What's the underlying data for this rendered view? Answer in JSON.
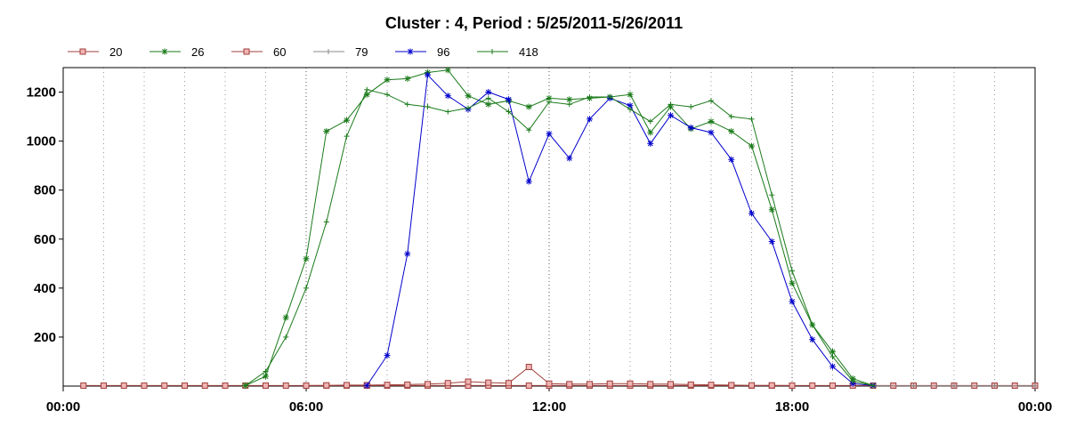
{
  "chart_data": {
    "type": "line",
    "title": "Cluster : 4, Period : 5/25/2011-5/26/2011",
    "xlabel": "",
    "ylabel": "",
    "x_tick_labels": [
      "00:00",
      "06:00",
      "12:00",
      "18:00",
      "00:00"
    ],
    "y_ticks": [
      200,
      400,
      600,
      800,
      1000,
      1200
    ],
    "xlim_hours": [
      0,
      24
    ],
    "ylim": [
      0,
      1300
    ],
    "grid": "vertical-dotted",
    "legend_placement": "top-left",
    "series": [
      {
        "name": "20",
        "color": "#a0403c",
        "marker": "square",
        "x": [
          0.5,
          1.0,
          1.5,
          2.0,
          2.5,
          3.0,
          3.5,
          4.0,
          4.5,
          5.0,
          5.5,
          6.0,
          6.5,
          7.0,
          7.5,
          8.0,
          8.5,
          9.0,
          9.5,
          10.0,
          10.5,
          11.0,
          11.5,
          12.0,
          12.5,
          13.0,
          13.5,
          14.0,
          14.5,
          15.0,
          15.5,
          16.0,
          16.5,
          17.0,
          17.5,
          18.0,
          18.5,
          19.0,
          19.5,
          20.0,
          20.5,
          21.0,
          21.5,
          22.0,
          22.5,
          23.0,
          23.5,
          24.0
        ],
        "values": [
          2,
          2,
          2,
          2,
          2,
          2,
          2,
          2,
          2,
          2,
          2,
          2,
          2,
          2,
          2,
          2,
          2,
          2,
          2,
          2,
          2,
          2,
          2,
          2,
          2,
          2,
          2,
          2,
          2,
          2,
          2,
          2,
          2,
          2,
          2,
          2,
          2,
          2,
          2,
          2,
          2,
          2,
          2,
          2,
          2,
          2,
          2,
          2
        ]
      },
      {
        "name": "26",
        "color": "#1a7a1a",
        "marker": "asterisk",
        "x": [
          4.5,
          5.0,
          5.5,
          6.0,
          6.5,
          7.0,
          7.5,
          8.0,
          8.5,
          9.0,
          9.5,
          10.0,
          10.5,
          11.0,
          11.5,
          12.0,
          12.5,
          13.0,
          13.5,
          14.0,
          14.5,
          15.0,
          15.5,
          16.0,
          16.5,
          17.0,
          17.5,
          18.0,
          18.5,
          19.0,
          19.5,
          20.0
        ],
        "values": [
          2,
          40,
          280,
          520,
          1040,
          1085,
          1190,
          1250,
          1255,
          1280,
          1290,
          1185,
          1150,
          1165,
          1140,
          1175,
          1170,
          1175,
          1180,
          1190,
          1035,
          1140,
          1050,
          1080,
          1040,
          980,
          720,
          420,
          250,
          140,
          30,
          2
        ]
      },
      {
        "name": "60",
        "color": "#a0403c",
        "marker": "square",
        "x": [
          6.0,
          6.5,
          7.0,
          7.5,
          8.0,
          8.5,
          9.0,
          9.5,
          10.0,
          10.5,
          11.0,
          11.5,
          12.0,
          12.5,
          13.0,
          13.5,
          14.0,
          14.5,
          15.0,
          15.5,
          16.0,
          16.5,
          17.0,
          17.5,
          18.0
        ],
        "values": [
          2,
          3,
          4,
          4,
          5,
          6,
          8,
          12,
          18,
          14,
          12,
          78,
          10,
          8,
          8,
          10,
          10,
          8,
          8,
          6,
          5,
          4,
          3,
          3,
          2
        ]
      },
      {
        "name": "79",
        "color": "#888888",
        "marker": "plus",
        "x": [
          20.0,
          21.0,
          22.0,
          23.0,
          24.0
        ],
        "values": [
          1,
          1,
          1,
          1,
          1
        ]
      },
      {
        "name": "96",
        "color": "#0000cc",
        "marker": "asterisk",
        "x": [
          7.5,
          8.0,
          8.5,
          9.0,
          9.5,
          10.0,
          10.5,
          11.0,
          11.5,
          12.0,
          12.5,
          13.0,
          13.5,
          14.0,
          14.5,
          15.0,
          15.5,
          16.0,
          16.5,
          17.0,
          17.5,
          18.0,
          18.5,
          19.0,
          19.5,
          20.0
        ],
        "values": [
          2,
          125,
          540,
          1270,
          1185,
          1130,
          1200,
          1170,
          835,
          1030,
          930,
          1090,
          1175,
          1145,
          990,
          1105,
          1055,
          1035,
          925,
          705,
          590,
          345,
          190,
          80,
          10,
          2
        ]
      },
      {
        "name": "418",
        "color": "#1a7a1a",
        "marker": "plus",
        "x": [
          4.5,
          5.0,
          5.5,
          6.0,
          6.5,
          7.0,
          7.5,
          8.0,
          8.5,
          9.0,
          9.5,
          10.0,
          10.5,
          11.0,
          11.5,
          12.0,
          12.5,
          13.0,
          13.5,
          14.0,
          14.5,
          15.0,
          15.5,
          16.0,
          16.5,
          17.0,
          17.5,
          18.0,
          18.5,
          19.0,
          19.5,
          20.0
        ],
        "values": [
          2,
          60,
          200,
          400,
          670,
          1020,
          1210,
          1190,
          1150,
          1140,
          1120,
          1135,
          1175,
          1120,
          1045,
          1160,
          1150,
          1180,
          1180,
          1130,
          1080,
          1150,
          1140,
          1165,
          1100,
          1090,
          780,
          470,
          250,
          120,
          20,
          2
        ]
      }
    ]
  }
}
